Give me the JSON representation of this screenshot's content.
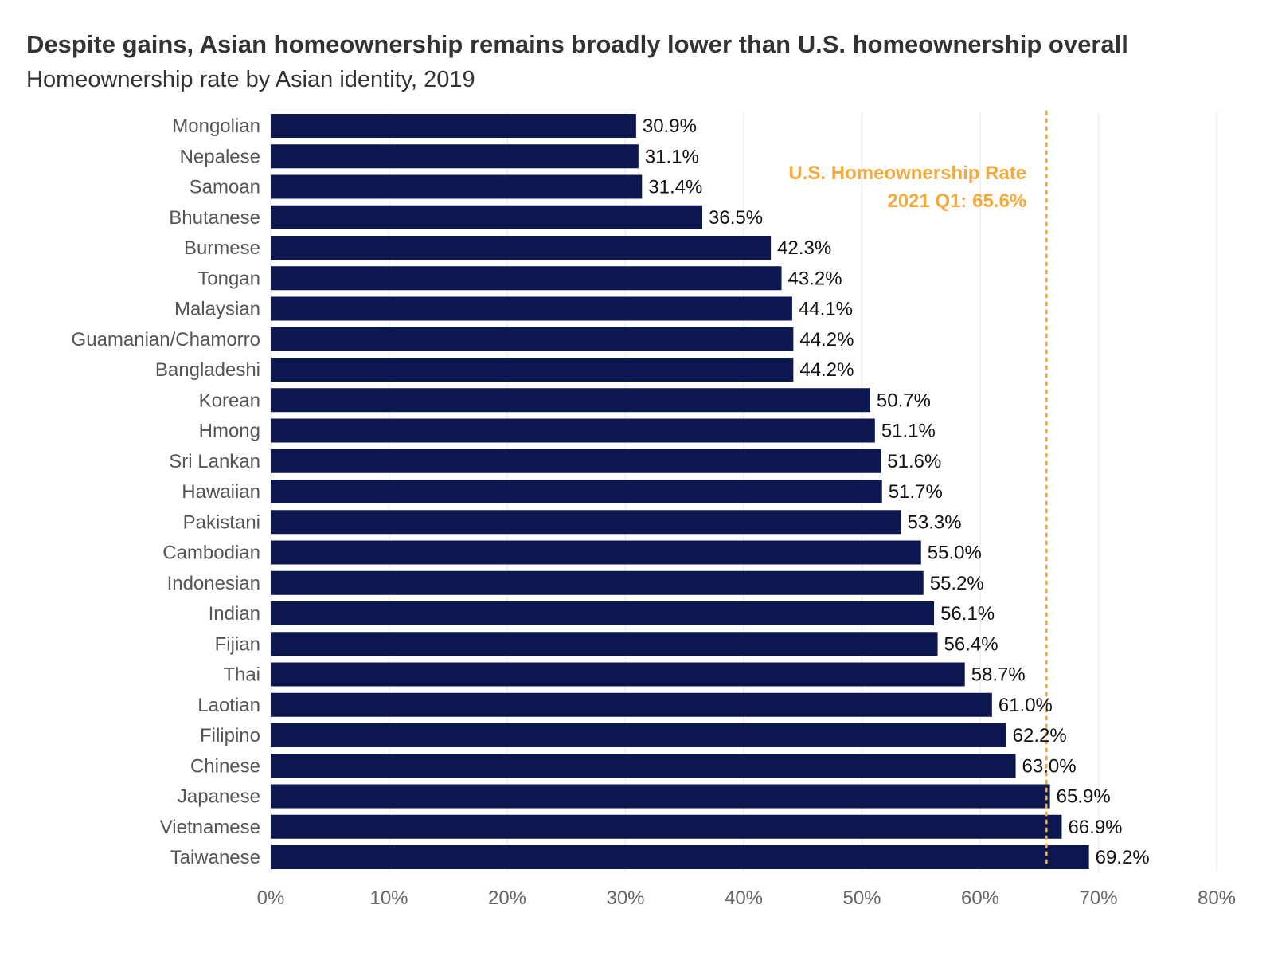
{
  "chart_data": {
    "type": "bar",
    "orientation": "horizontal",
    "title": "Despite gains, Asian homeownership remains broadly lower than U.S. homeownership overall",
    "subtitle": "Homeownership rate by Asian identity, 2019",
    "categories": [
      "Mongolian",
      "Nepalese",
      "Samoan",
      "Bhutanese",
      "Burmese",
      "Tongan",
      "Malaysian",
      "Guamanian/Chamorro",
      "Bangladeshi",
      "Korean",
      "Hmong",
      "Sri Lankan",
      "Hawaiian",
      "Pakistani",
      "Cambodian",
      "Indonesian",
      "Indian",
      "Fijian",
      "Thai",
      "Laotian",
      "Filipino",
      "Chinese",
      "Japanese",
      "Vietnamese",
      "Taiwanese"
    ],
    "values": [
      30.9,
      31.1,
      31.4,
      36.5,
      42.3,
      43.2,
      44.1,
      44.2,
      44.2,
      50.7,
      51.1,
      51.6,
      51.7,
      53.3,
      55.0,
      55.2,
      56.1,
      56.4,
      58.7,
      61.0,
      62.2,
      63.0,
      65.9,
      66.9,
      69.2
    ],
    "value_labels": [
      "30.9%",
      "31.1%",
      "31.4%",
      "36.5%",
      "42.3%",
      "43.2%",
      "44.1%",
      "44.2%",
      "44.2%",
      "50.7%",
      "51.1%",
      "51.6%",
      "51.7%",
      "53.3%",
      "55.0%",
      "55.2%",
      "56.1%",
      "56.4%",
      "58.7%",
      "61.0%",
      "62.2%",
      "63.0%",
      "65.9%",
      "66.9%",
      "69.2%"
    ],
    "x_ticks": [
      0,
      10,
      20,
      30,
      40,
      50,
      60,
      70,
      80
    ],
    "x_tick_labels": [
      "0%",
      "10%",
      "20%",
      "30%",
      "40%",
      "50%",
      "60%",
      "70%",
      "80%"
    ],
    "xlim": [
      0,
      80
    ],
    "xlabel": "",
    "ylabel": "",
    "grid": "vertical",
    "reference_line": {
      "value": 65.6,
      "label_line1": "U.S. Homeownership Rate",
      "label_line2": "2021 Q1: 65.6%",
      "style": "dotted",
      "color": "#f4a93c"
    },
    "colors": {
      "bar": "#0c174f",
      "grid": "#eeeeee",
      "reference": "#f4a93c"
    }
  }
}
